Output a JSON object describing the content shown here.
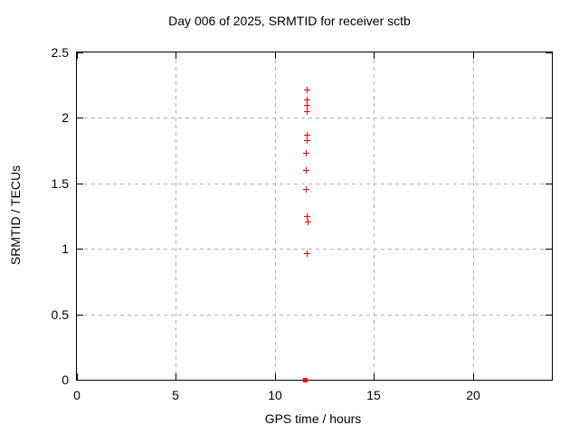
{
  "chart_data": {
    "type": "scatter",
    "title": "Day 006 of 2025, SRMTID for receiver sctb",
    "xlabel": "GPS time / hours",
    "ylabel": "SRMTID / TECUs",
    "xlim": [
      0,
      24
    ],
    "ylim": [
      0,
      2.5
    ],
    "xticks": [
      0,
      5,
      10,
      15,
      20
    ],
    "xtick_labels": [
      "0",
      "5",
      "10",
      "15",
      "20"
    ],
    "yticks": [
      0,
      0.5,
      1,
      1.5,
      2,
      2.5
    ],
    "ytick_labels": [
      "0",
      "0.5",
      "1",
      "1.5",
      "2",
      "2.5"
    ],
    "grid": true,
    "legend_position": "none",
    "series": [
      {
        "name": "SRMTID points",
        "marker": "plus",
        "color": "#ff0000",
        "points": [
          [
            11.6,
            2.22
          ],
          [
            11.6,
            2.14
          ],
          [
            11.6,
            2.1
          ],
          [
            11.6,
            2.05
          ],
          [
            11.6,
            1.87
          ],
          [
            11.6,
            1.83
          ],
          [
            11.55,
            1.73
          ],
          [
            11.55,
            1.6
          ],
          [
            11.55,
            1.46
          ],
          [
            11.6,
            1.25
          ],
          [
            11.65,
            1.21
          ],
          [
            11.6,
            0.97
          ]
        ]
      },
      {
        "name": "baseline marker",
        "marker": "square",
        "color": "#ff0000",
        "points": [
          [
            11.5,
            0.0
          ]
        ]
      }
    ]
  },
  "colors": {
    "background": "#ffffff",
    "border": "#000000",
    "grid": "#b3b3b3",
    "marker": "#ff0000",
    "text": "#000000"
  }
}
